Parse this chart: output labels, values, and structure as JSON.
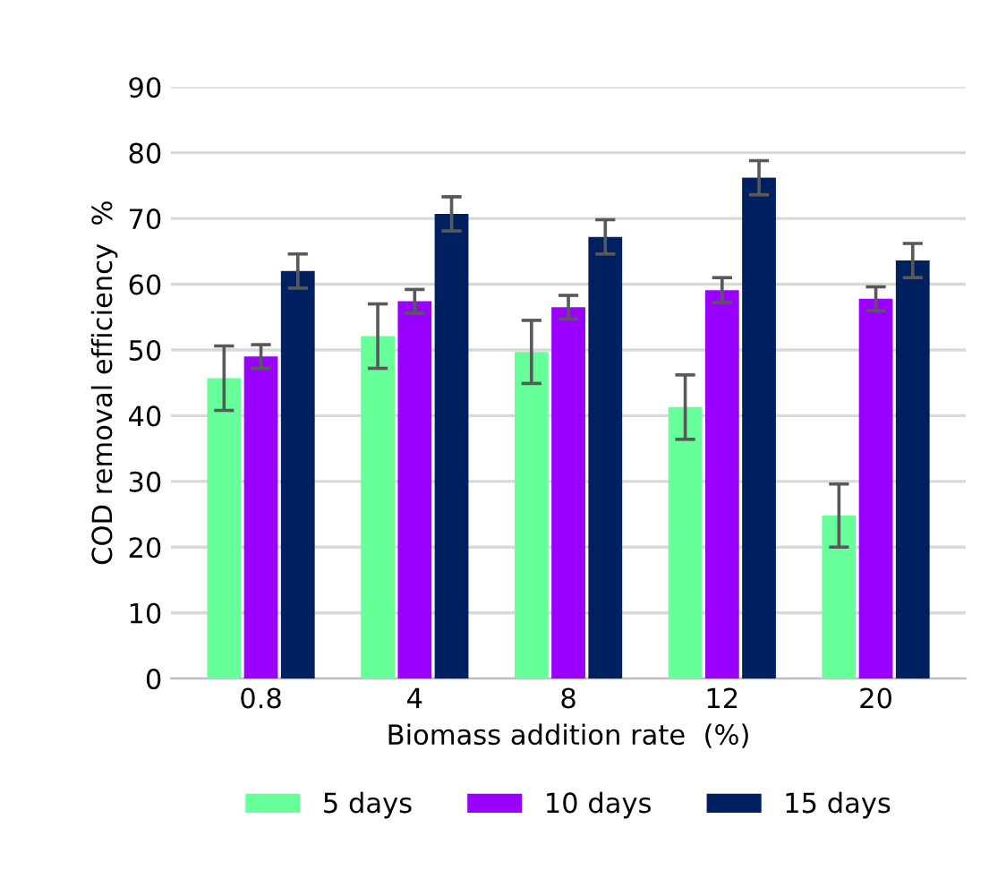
{
  "chart_data": {
    "type": "bar",
    "xlabel": "Biomass addition rate  (%)",
    "ylabel": "COD removal efficiency  %",
    "categories": [
      "0.8",
      "4",
      "8",
      "12",
      "20"
    ],
    "series": [
      {
        "name": "5 days",
        "color": "#66ff99",
        "values": [
          45.7,
          52.1,
          49.7,
          41.3,
          24.8
        ],
        "errors": [
          4.9,
          4.9,
          4.8,
          4.9,
          4.8
        ]
      },
      {
        "name": "10 days",
        "color": "#9900ff",
        "values": [
          49.0,
          57.4,
          56.5,
          59.1,
          57.8
        ],
        "errors": [
          1.8,
          1.8,
          1.8,
          1.9,
          1.8
        ]
      },
      {
        "name": "15 days",
        "color": "#002060",
        "values": [
          62.0,
          70.7,
          67.2,
          76.2,
          63.6
        ],
        "errors": [
          2.6,
          2.6,
          2.6,
          2.6,
          2.6
        ]
      }
    ],
    "ylim": [
      0,
      90
    ],
    "yticks": [
      0,
      10,
      20,
      30,
      40,
      50,
      60,
      70,
      80,
      90
    ],
    "grid": "y",
    "legend": "bottom"
  }
}
